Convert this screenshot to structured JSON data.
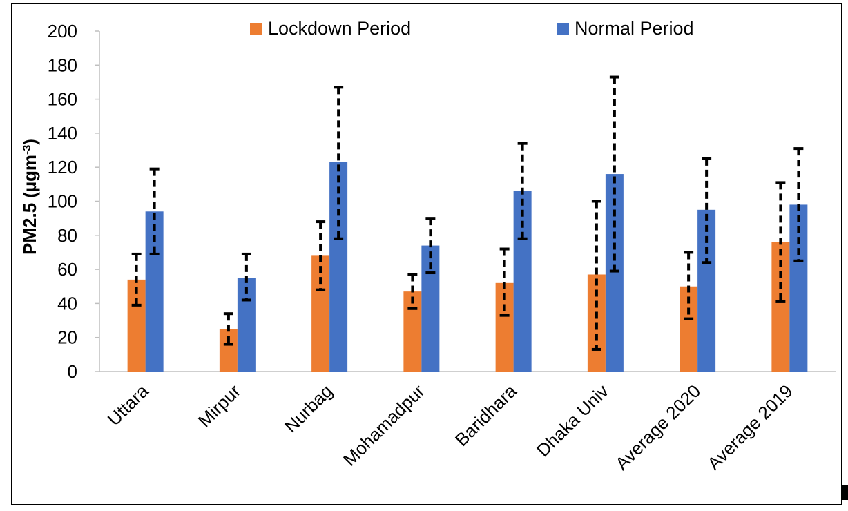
{
  "chart_data": {
    "type": "bar",
    "title": "",
    "xlabel": "",
    "ylabel": "PM2.5 (µgm",
    "ylabel_superscript": "-3",
    "ylabel_close": ")",
    "ylim": [
      0,
      200
    ],
    "yticks": [
      0,
      20,
      40,
      60,
      80,
      100,
      120,
      140,
      160,
      180,
      200
    ],
    "grid": false,
    "legend_position": "top",
    "categories": [
      "Uttara",
      "Mirpur",
      "Nurbag",
      "Mohamadpur",
      "Baridhara",
      "Dhaka Univ",
      "Average 2020",
      "Average 2019"
    ],
    "series": [
      {
        "name": "Lockdown Period",
        "color": "#ED7D31",
        "values": [
          54,
          25,
          68,
          47,
          52,
          57,
          50,
          76
        ],
        "error_low": [
          39,
          16,
          48,
          37,
          33,
          13,
          31,
          41
        ],
        "error_high": [
          69,
          34,
          88,
          57,
          72,
          100,
          70,
          111
        ]
      },
      {
        "name": "Normal Period",
        "color": "#4472C4",
        "values": [
          94,
          55,
          123,
          74,
          106,
          116,
          95,
          98
        ],
        "error_low": [
          69,
          42,
          78,
          58,
          78,
          59,
          64,
          65
        ],
        "error_high": [
          119,
          69,
          167,
          90,
          134,
          173,
          125,
          131
        ]
      }
    ],
    "error_bar_style": "dashed"
  }
}
